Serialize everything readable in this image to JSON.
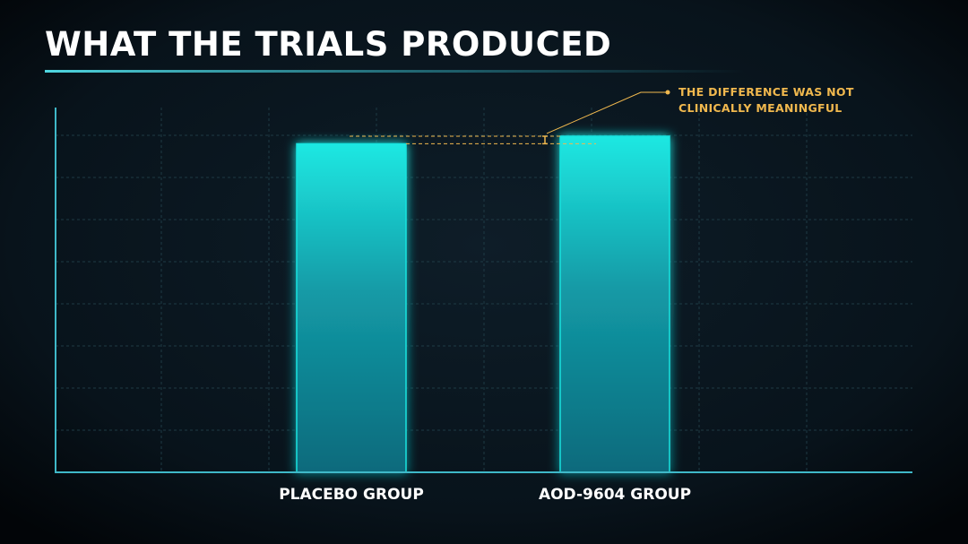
{
  "chart_data": {
    "type": "bar",
    "title": "WHAT THE TRIALS PRODUCED",
    "categories": [
      "PLACEBO GROUP",
      "AOD-9604 GROUP"
    ],
    "values": [
      7.8,
      7.98
    ],
    "color": "#19e3df",
    "annotation": [
      "THE DIFFERENCE WAS NOT",
      "CLINICALLY MEANINGFUL"
    ],
    "annotation_color": "#f0b84e",
    "ylim": [
      0,
      8.66
    ],
    "yticks": [
      1,
      2,
      3,
      4,
      5,
      6,
      7,
      8
    ],
    "grid": true
  }
}
